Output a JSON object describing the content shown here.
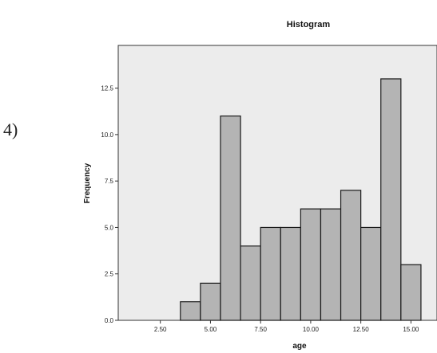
{
  "problem_label": "4)",
  "chart_data": {
    "type": "bar",
    "title": "Histogram",
    "xlabel": "age",
    "ylabel": "Frequency",
    "x_ticks": [
      "2.50",
      "5.00",
      "7.50",
      "10.00",
      "12.50",
      "15.00"
    ],
    "y_ticks": [
      "0.0",
      "2.5",
      "5.0",
      "7.5",
      "10.0",
      "12.5"
    ],
    "bins": [
      {
        "start": 3.5,
        "end": 4.5,
        "value": 1
      },
      {
        "start": 4.5,
        "end": 5.5,
        "value": 2
      },
      {
        "start": 5.5,
        "end": 6.5,
        "value": 11
      },
      {
        "start": 6.5,
        "end": 7.5,
        "value": 4
      },
      {
        "start": 7.5,
        "end": 8.5,
        "value": 5
      },
      {
        "start": 8.5,
        "end": 9.5,
        "value": 5
      },
      {
        "start": 9.5,
        "end": 10.5,
        "value": 6
      },
      {
        "start": 10.5,
        "end": 11.5,
        "value": 6
      },
      {
        "start": 11.5,
        "end": 12.5,
        "value": 7
      },
      {
        "start": 12.5,
        "end": 13.5,
        "value": 5
      },
      {
        "start": 13.5,
        "end": 14.5,
        "value": 13
      },
      {
        "start": 14.5,
        "end": 15.5,
        "value": 3
      }
    ],
    "xlim": [
      0.4,
      16.3
    ],
    "ylim": [
      0,
      14.8
    ],
    "colors": {
      "plot_bg": "#ececec",
      "bar_fill": "#b4b4b4",
      "bar_stroke": "#1a1a1a",
      "axis": "#333333"
    }
  }
}
